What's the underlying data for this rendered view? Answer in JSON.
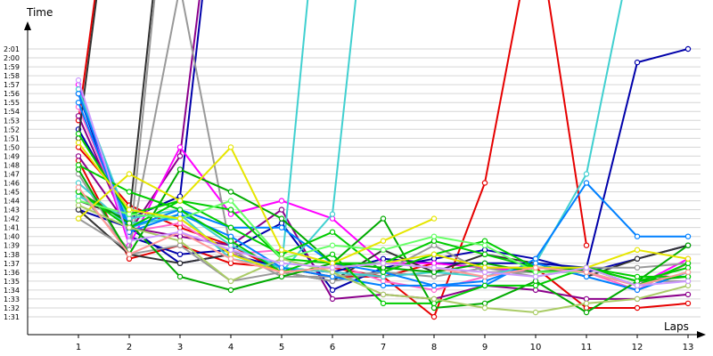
{
  "chart_data": {
    "type": "line",
    "title": "",
    "xlabel": "Laps",
    "ylabel": "Time",
    "x": [
      1,
      2,
      3,
      4,
      5,
      6,
      7,
      8,
      9,
      10,
      11,
      12,
      13
    ],
    "xlim": [
      0.2,
      14.0
    ],
    "y_ticks": [
      "1:31",
      "1:32",
      "1:33",
      "1:34",
      "1:35",
      "1:36",
      "1:37",
      "1:38",
      "1:39",
      "1:40",
      "1:41",
      "1:42",
      "1:43",
      "1:44",
      "1:45",
      "1:46",
      "1:47",
      "1:48",
      "1:49",
      "1:50",
      "1:51",
      "1:52",
      "1:53",
      "1:54",
      "1:55",
      "1:56",
      "1:57",
      "1:58",
      "1:59",
      "2:00",
      "2:01"
    ],
    "ylim": [
      90,
      126
    ],
    "grid": true,
    "series": [
      {
        "color": "#e60000",
        "values": [
          108.5,
          97.5,
          99.0,
          97.0,
          96.5,
          95.5,
          95.5,
          91.0,
          106.0,
          136,
          99.0,
          null,
          null
        ]
      },
      {
        "color": "#e60000",
        "values": [
          113.0,
          155,
          null,
          null,
          null,
          null,
          null,
          null,
          null,
          null,
          null,
          null,
          null
        ]
      },
      {
        "color": "#e60000",
        "values": [
          110.0,
          103.5,
          101.0,
          99.0,
          96.0,
          96.5,
          95.5,
          97.0,
          96.5,
          96.5,
          92.0,
          92.0,
          92.5
        ]
      },
      {
        "color": "#ff66cc",
        "values": [
          114.5,
          100.5,
          101.5,
          98.0,
          98.5,
          97.0,
          95.0,
          94.0,
          95.5,
          96.5,
          96.0,
          94.0,
          97.0
        ]
      },
      {
        "color": "#0000aa",
        "values": [
          112.0,
          102.0,
          104.5,
          155,
          null,
          null,
          null,
          null,
          null,
          null,
          null,
          null,
          null
        ]
      },
      {
        "color": "#0000aa",
        "values": [
          116.0,
          100.0,
          98.0,
          98.5,
          101.5,
          94.0,
          96.5,
          97.5,
          98.5,
          97.5,
          96.0,
          97.5,
          99.0
        ]
      },
      {
        "color": "#0000aa",
        "values": [
          103.0,
          101.0,
          97.0,
          98.0,
          96.5,
          96.0,
          97.5,
          97.0,
          97.0,
          97.0,
          96.5,
          119.5,
          121.0
        ]
      },
      {
        "color": "#8b008b",
        "values": [
          113.5,
          100.5,
          109.0,
          155,
          null,
          null,
          null,
          null,
          null,
          null,
          null,
          null,
          null
        ]
      },
      {
        "color": "#8b008b",
        "values": [
          109.0,
          101.0,
          100.0,
          99.0,
          103.0,
          93.0,
          93.5,
          93.0,
          94.5,
          94.0,
          93.0,
          93.0,
          93.5
        ]
      },
      {
        "color": "#ff00ff",
        "values": [
          117.0,
          99.0,
          110.0,
          102.5,
          104.0,
          102.0,
          97.0,
          97.0,
          96.5,
          96.0,
          96.0,
          94.5,
          97.5
        ]
      },
      {
        "color": "#333333",
        "values": [
          111.0,
          155,
          null,
          null,
          null,
          null,
          null,
          null,
          null,
          null,
          null,
          null,
          null
        ]
      },
      {
        "color": "#333333",
        "values": [
          104.0,
          102.0,
          155,
          null,
          null,
          null,
          null,
          null,
          null,
          null,
          null,
          null,
          null
        ]
      },
      {
        "color": "#333333",
        "values": [
          103.0,
          98.0,
          97.0,
          98.0,
          96.0,
          95.0,
          98.5,
          96.0,
          98.0,
          97.0,
          95.5,
          97.5,
          99.0
        ]
      },
      {
        "color": "#999999",
        "values": [
          105.0,
          98.5,
          155,
          null,
          null,
          null,
          null,
          null,
          null,
          null,
          null,
          null,
          null
        ]
      },
      {
        "color": "#999999",
        "values": [
          107.0,
          98.0,
          99.0,
          95.0,
          96.0,
          95.0,
          96.0,
          99.0,
          96.0,
          96.0,
          96.5,
          96.5,
          97.0
        ]
      },
      {
        "color": "#999999",
        "values": [
          102.0,
          98.5,
          128.0,
          98.5,
          95.5,
          95.5,
          96.0,
          95.5,
          96.5,
          95.5,
          96.5,
          95.0,
          95.0
        ]
      },
      {
        "color": "#40d0d0",
        "values": [
          116.5,
          101.5,
          102.0,
          98.0,
          96.0,
          102.5,
          155,
          null,
          null,
          null,
          null,
          null,
          null
        ]
      },
      {
        "color": "#40d0d0",
        "values": [
          104.5,
          102.0,
          103.0,
          99.0,
          96.5,
          155,
          null,
          null,
          null,
          null,
          null,
          null,
          null
        ]
      },
      {
        "color": "#40d0d0",
        "values": [
          106.0,
          101.0,
          102.5,
          97.5,
          96.5,
          96.0,
          95.5,
          96.0,
          95.5,
          97.0,
          107.0,
          135,
          null
        ]
      },
      {
        "color": "#0080ff",
        "values": [
          116.0,
          101.0,
          103.0,
          101.0,
          101.0,
          97.0,
          96.0,
          94.5,
          94.5,
          97.5,
          106.0,
          100.0,
          100.0
        ]
      },
      {
        "color": "#0080ff",
        "values": [
          115.0,
          100.5,
          102.5,
          100.0,
          96.5,
          95.5,
          94.5,
          94.5,
          95.0,
          97.0,
          95.5,
          94.0,
          96.0
        ]
      },
      {
        "color": "#00aa00",
        "values": [
          105.0,
          101.5,
          95.5,
          94.0,
          95.5,
          97.0,
          102.0,
          92.0,
          92.5,
          95.0,
          91.5,
          95.0,
          99.0
        ]
      },
      {
        "color": "#00aa00",
        "values": [
          107.5,
          98.0,
          107.5,
          105.0,
          102.0,
          97.0,
          96.5,
          96.0,
          97.0,
          96.0,
          96.5,
          95.0,
          95.5
        ]
      },
      {
        "color": "#00cc00",
        "values": [
          108.0,
          105.0,
          103.0,
          99.5,
          96.0,
          98.0,
          92.5,
          92.5,
          94.5,
          94.5,
          96.5,
          95.0,
          96.5
        ]
      },
      {
        "color": "#00cc00",
        "values": [
          105.0,
          101.0,
          104.0,
          103.0,
          97.5,
          97.0,
          97.0,
          99.5,
          98.0,
          96.5,
          96.5,
          94.5,
          97.0
        ]
      },
      {
        "color": "#00cc00",
        "values": [
          111.5,
          102.5,
          104.0,
          101.0,
          98.0,
          100.5,
          96.0,
          98.0,
          99.5,
          96.5,
          96.5,
          95.5,
          95.5
        ]
      },
      {
        "color": "#66ff66",
        "values": [
          104.0,
          102.5,
          102.0,
          104.0,
          97.5,
          99.0,
          98.5,
          100.0,
          99.0,
          96.0,
          96.0,
          94.5,
          96.0
        ]
      },
      {
        "color": "#e6e600",
        "values": [
          102.0,
          107.0,
          104.0,
          110.0,
          98.5,
          97.0,
          99.5,
          102.0,
          null,
          null,
          null,
          null,
          null
        ]
      },
      {
        "color": "#e6e600",
        "values": [
          110.5,
          103.0,
          102.0,
          98.0,
          96.0,
          96.5,
          97.0,
          98.0,
          96.5,
          96.5,
          96.5,
          98.5,
          97.5
        ]
      },
      {
        "color": "#aacc66",
        "values": [
          103.5,
          101.0,
          99.5,
          95.0,
          97.5,
          96.0,
          93.5,
          93.0,
          92.0,
          91.5,
          92.5,
          93.0,
          94.5
        ]
      },
      {
        "color": "#ff9999",
        "values": [
          105.5,
          98.0,
          100.5,
          97.5,
          96.0,
          96.5,
          97.0,
          96.5,
          95.5,
          96.5,
          96.0,
          94.5,
          96.0
        ]
      },
      {
        "color": "#cc99ff",
        "values": [
          117.5,
          99.5,
          100.5,
          98.5,
          97.0,
          96.5,
          97.0,
          96.5,
          96.0,
          95.5,
          96.5,
          94.5,
          95.0
        ]
      }
    ]
  }
}
